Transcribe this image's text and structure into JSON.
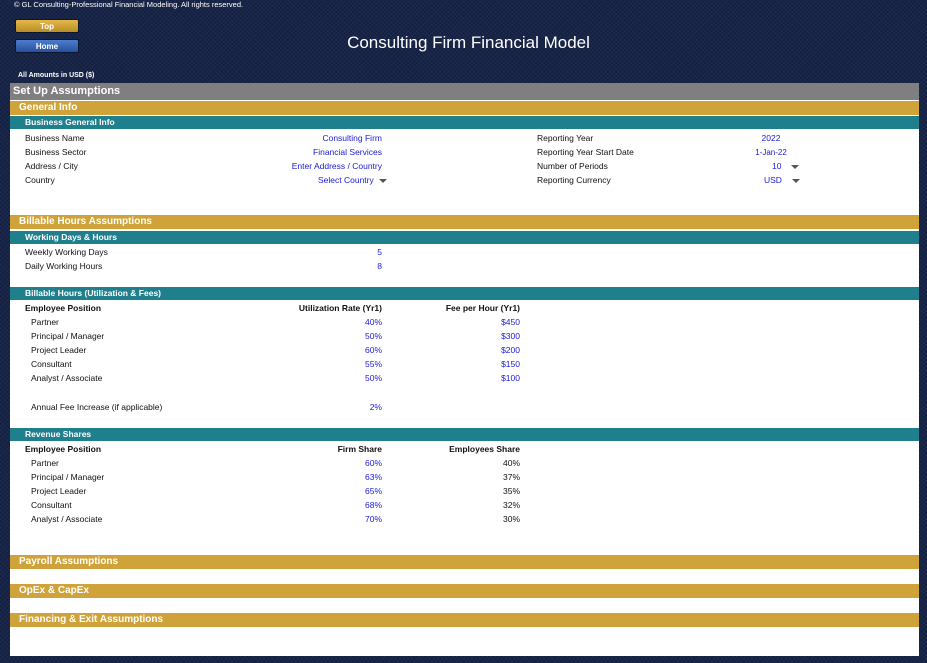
{
  "copyright": "© GL Consulting-Professional Financial Modeling. All rights reserved.",
  "nav": {
    "top_label": "Top",
    "home_label": "Home"
  },
  "title": "Consulting Firm Financial Model",
  "amounts_note": "All Amounts in  USD ($)",
  "setup_header": "Set Up Assumptions",
  "general": {
    "header": "General Info",
    "subheader": "Business General Info",
    "business_name_label": "Business Name",
    "business_name_value": "Consulting Firm",
    "business_sector_label": "Business Sector",
    "business_sector_value": "Financial Services",
    "address_label": "Address / City",
    "address_value": "Enter Address / Country",
    "country_label": "Country",
    "country_value": "Select Country",
    "reporting_year_label": "Reporting Year",
    "reporting_year_value": "2022",
    "start_date_label": "Reporting Year Start Date",
    "start_date_value": "1-Jan-22",
    "periods_label": "Number of Periods",
    "periods_value": "10",
    "currency_label": "Reporting Currency",
    "currency_value": "USD"
  },
  "billable": {
    "header": "Billable Hours Assumptions",
    "working_header": "Working Days & Hours",
    "weekly_days_label": "Weekly Working Days",
    "weekly_days_value": "5",
    "daily_hours_label": "Daily Working Hours",
    "daily_hours_value": "8",
    "util_header": "Billable Hours (Utilization & Fees)",
    "col_position": "Employee Position",
    "col_util": "Utilization Rate (Yr1)",
    "col_fee": "Fee per Hour (Yr1)",
    "rows": [
      {
        "position": "Partner",
        "util": "40%",
        "fee": "$450"
      },
      {
        "position": "Principal / Manager",
        "util": "50%",
        "fee": "$300"
      },
      {
        "position": "Project Leader",
        "util": "60%",
        "fee": "$200"
      },
      {
        "position": "Consultant",
        "util": "55%",
        "fee": "$150"
      },
      {
        "position": "Analyst / Associate",
        "util": "50%",
        "fee": "$100"
      }
    ],
    "fee_increase_label": "Annual Fee Increase (if applicable)",
    "fee_increase_value": "2%"
  },
  "revenue": {
    "header": "Revenue Shares",
    "col_position": "Employee Position",
    "col_firm": "Firm Share",
    "col_emp": "Employees Share",
    "rows": [
      {
        "position": "Partner",
        "firm": "60%",
        "emp": "40%"
      },
      {
        "position": "Principal / Manager",
        "firm": "63%",
        "emp": "37%"
      },
      {
        "position": "Project Leader",
        "firm": "65%",
        "emp": "35%"
      },
      {
        "position": "Consultant",
        "firm": "68%",
        "emp": "32%"
      },
      {
        "position": "Analyst / Associate",
        "firm": "70%",
        "emp": "30%"
      }
    ]
  },
  "sections": {
    "payroll": "Payroll Assumptions",
    "opex": "OpEx & CapEx",
    "financing": "Financing & Exit Assumptions"
  }
}
